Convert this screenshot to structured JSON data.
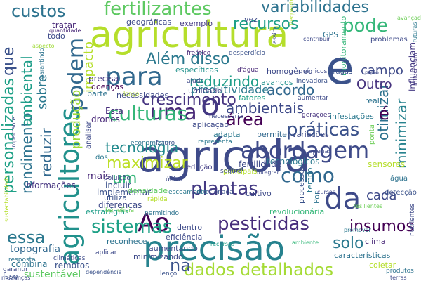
{
  "words": [
    {
      "text": "agricultura",
      "color": "#b5de2b"
    },
    {
      "text": "agrícola",
      "color": "#3e4a89"
    },
    {
      "text": "precisão",
      "color": "#26828e"
    },
    {
      "text": "e",
      "color": "#3b528b"
    },
    {
      "text": "agricultores",
      "color": "#21918c"
    },
    {
      "text": "abordagem",
      "color": "#3e4a89"
    },
    {
      "text": "para",
      "color": "#31688e"
    },
    {
      "text": "uma",
      "color": "#482878"
    },
    {
      "text": "o",
      "color": "#443983"
    },
    {
      "text": "da",
      "color": "#3e4a89"
    },
    {
      "text": "Ao",
      "color": "#440154"
    },
    {
      "text": "fertilizantes",
      "color": "#5ec962"
    },
    {
      "text": "variabilidades",
      "color": "#2c728e"
    },
    {
      "text": "dados detalhados",
      "color": "#a5db36"
    },
    {
      "text": "pesticidas",
      "color": "#472d7b"
    },
    {
      "text": "plantas",
      "color": "#443983"
    },
    {
      "text": "culturas",
      "color": "#35b779"
    },
    {
      "text": "como",
      "color": "#31688e"
    },
    {
      "text": "práticas",
      "color": "#3b528b"
    },
    {
      "text": "área",
      "color": "#440154"
    },
    {
      "text": "Além disso",
      "color": "#2a788e"
    },
    {
      "text": "podem",
      "color": "#31688e"
    },
    {
      "text": "recursos",
      "color": "#1f9e89"
    },
    {
      "text": "pode",
      "color": "#35b779"
    },
    {
      "text": "custos",
      "color": "#2c728e"
    },
    {
      "text": "ambientais",
      "color": "#3e4a89"
    },
    {
      "text": "personalizadas",
      "color": "#1fa187"
    },
    {
      "text": "sistemas",
      "color": "#1fa187"
    },
    {
      "text": "essa",
      "color": "#2a788e"
    },
    {
      "text": "na",
      "color": "#3b528b"
    },
    {
      "text": "insumos",
      "color": "#440154"
    },
    {
      "text": "solo",
      "color": "#2a788e"
    },
    {
      "text": "um",
      "color": "#35b779"
    },
    {
      "text": "crescimento",
      "color": "#463480"
    },
    {
      "text": "acordo",
      "color": "#31688e"
    },
    {
      "text": "reduzindo",
      "color": "#1f9e89"
    },
    {
      "text": "maximizar",
      "color": "#bddf26"
    },
    {
      "text": "tecnologia",
      "color": "#238a8d"
    },
    {
      "text": "otimizar",
      "color": "#2c728e"
    },
    {
      "text": "minimizar",
      "color": "#26828e"
    },
    {
      "text": "rendimento",
      "color": "#2c728e"
    },
    {
      "text": "ambiental",
      "color": "#1f9e89"
    },
    {
      "text": "sobre",
      "color": "#2a788e"
    },
    {
      "text": "produção",
      "color": "#a0da39"
    },
    {
      "text": "impacto",
      "color": "#b5de2b"
    },
    {
      "text": "que",
      "color": "#3b528b"
    },
    {
      "text": "reduzir",
      "color": "#31688e"
    },
    {
      "text": "cada",
      "color": "#3e4a89"
    },
    {
      "text": "campo",
      "color": "#3e4a89"
    },
    {
      "text": "Outro",
      "color": "#46327e"
    },
    {
      "text": "é",
      "color": "#440154"
    },
    {
      "text": "produtividade",
      "color": "#2a788e"
    },
    {
      "text": "topografia",
      "color": "#31688e"
    },
    {
      "text": "sustentável",
      "color": "#5ec962"
    },
    {
      "text": "combina",
      "color": "#2c728e"
    },
    {
      "text": "informações",
      "color": "#463480"
    },
    {
      "text": "remotos",
      "color": "#3b528b"
    },
    {
      "text": "mais",
      "color": "#482878"
    },
    {
      "text": "incluir",
      "color": "#3b528b"
    },
    {
      "text": "implementar",
      "color": "#3b528b"
    },
    {
      "text": "fertilidade",
      "color": "#3e4a89"
    },
    {
      "text": "tecnológicos",
      "color": "#2a788e"
    },
    {
      "text": "sensores",
      "color": "#b5de2b"
    },
    {
      "text": "influenciam",
      "color": "#443983"
    },
    {
      "text": "monitoramento",
      "color": "#35b779"
    },
    {
      "text": "exemplo",
      "color": "#443983"
    },
    {
      "text": "geográficas",
      "color": "#3e4a89"
    },
    {
      "text": "tratar",
      "color": "#482878"
    },
    {
      "text": "todo",
      "color": "#3e4a89"
    },
    {
      "text": "homogêneo",
      "color": "#3e4a89"
    },
    {
      "text": "precisa",
      "color": "#443983"
    },
    {
      "text": "doenças",
      "color": "#440154"
    },
    {
      "text": "avanços",
      "color": "#21918c"
    },
    {
      "text": "específicas",
      "color": "#21918c"
    },
    {
      "text": "necessidades",
      "color": "#3e4a89"
    },
    {
      "text": "parte",
      "color": "#2c728e"
    },
    {
      "text": "umidade",
      "color": "#433e85"
    },
    {
      "text": "fatores",
      "color": "#1fa187"
    },
    {
      "text": "drones",
      "color": "#482878"
    },
    {
      "text": "Esta",
      "color": "#472d7b"
    },
    {
      "text": "aplicação",
      "color": "#3e4a89"
    },
    {
      "text": "adapta",
      "color": "#2a788e"
    },
    {
      "text": "permite",
      "color": "#31688e"
    },
    {
      "text": "variações",
      "color": "#3e4a89"
    },
    {
      "text": "infestações",
      "color": "#2a788e"
    },
    {
      "text": "real",
      "color": "#2c728e"
    },
    {
      "text": "GPS",
      "color": "#2c728e"
    },
    {
      "text": "vez",
      "color": "#3e4a89"
    },
    {
      "text": "problemas",
      "color": "#3e4a89"
    },
    {
      "text": "pragas",
      "color": "#3b528b"
    },
    {
      "text": "diferenças",
      "color": "#3e4a89"
    },
    {
      "text": "estratégias",
      "color": "#1f9e89"
    },
    {
      "text": "eficiência",
      "color": "#3e4a89"
    },
    {
      "text": "revolucionária",
      "color": "#35b779"
    },
    {
      "text": "densidade",
      "color": "#5ec962"
    },
    {
      "text": "utiliza",
      "color": "#3b528b"
    },
    {
      "text": "cultivo",
      "color": "#3e4a89"
    },
    {
      "text": "dentro",
      "color": "#3e4a89"
    },
    {
      "text": "reconhece",
      "color": "#2c728e"
    },
    {
      "text": "aumentando",
      "color": "#3e4a89"
    },
    {
      "text": "minimizando",
      "color": "#3e4a89"
    },
    {
      "text": "características",
      "color": "#2c728e"
    },
    {
      "text": "coletar",
      "color": "#b5de2b"
    },
    {
      "text": "clima",
      "color": "#482878"
    },
    {
      "text": "processos",
      "color": "#3b528b"
    },
    {
      "text": "tempo",
      "color": "#2a788e"
    },
    {
      "text": "Por",
      "color": "#2c728e"
    },
    {
      "text": "redução",
      "color": "#433e85"
    },
    {
      "text": "principais",
      "color": "#b5de2b"
    },
    {
      "text": "ponta",
      "color": "#6ece58"
    },
    {
      "text": "água",
      "color": "#2c728e"
    },
    {
      "text": "detecção",
      "color": "#3b528b"
    },
    {
      "text": "analisar",
      "color": "#3e4a89"
    },
    {
      "text": "dos",
      "color": "#2a788e"
    },
    {
      "text": "Isso",
      "color": "#3b528b"
    },
    {
      "text": "frequentemente",
      "color": "#b5de2b"
    },
    {
      "text": "desperdício",
      "color": "#3b528b"
    },
    {
      "text": "freático",
      "color": "#482878"
    },
    {
      "text": "d'água",
      "color": "#482878"
    },
    {
      "text": "químicos",
      "color": "#3e4a89"
    },
    {
      "text": "lençol",
      "color": "#3b528b"
    },
    {
      "text": "ajuda",
      "color": "#3e4a89"
    },
    {
      "text": "inovadora",
      "color": "#3b528b"
    },
    {
      "text": "gerações",
      "color": "#46327e"
    },
    {
      "text": "aumentar",
      "color": "#3e4a89"
    },
    {
      "text": "necessária",
      "color": "#3e4a89"
    },
    {
      "text": "representa",
      "color": "#2a788e"
    },
    {
      "text": "economizar",
      "color": "#2c728e"
    },
    {
      "text": "futuro",
      "color": "#3b528b"
    },
    {
      "text": "seguro",
      "color": "#3e4a89"
    },
    {
      "text": "apenas",
      "color": "#3e4a89"
    },
    {
      "text": "única",
      "color": "#3e4a89"
    },
    {
      "text": "direcionada",
      "color": "#3b528b"
    },
    {
      "text": "escoamento",
      "color": "#2a788e"
    },
    {
      "text": "poluição",
      "color": "#3e4a89"
    },
    {
      "text": "rápida",
      "color": "#b5de2b"
    },
    {
      "text": "permitindo",
      "color": "#2c728e"
    },
    {
      "text": "beneficia",
      "color": "#6ece58"
    },
    {
      "text": "aplicar",
      "color": "#3e4a89"
    },
    {
      "text": "resposta",
      "color": "#2c728e"
    },
    {
      "text": "garantir",
      "color": "#3e4a89"
    },
    {
      "text": "climáticas",
      "color": "#3e4a89"
    },
    {
      "text": "produtos",
      "color": "#2c728e"
    },
    {
      "text": "terras",
      "color": "#3e4a89"
    },
    {
      "text": "ambiente",
      "color": "#35b779"
    },
    {
      "text": "resilientes",
      "color": "#6ece58"
    },
    {
      "text": "promover",
      "color": "#2a788e"
    },
    {
      "text": "nutrientes",
      "color": "#3e4a89"
    },
    {
      "text": "recursos",
      "color": "#1f9e89"
    },
    {
      "text": "cursos",
      "color": "#3e4a89"
    },
    {
      "text": "integrar",
      "color": "#3e4a89"
    },
    {
      "text": "longo",
      "color": "#b5de2b"
    },
    {
      "text": "quantidade",
      "color": "#482878"
    },
    {
      "text": "aspecto",
      "color": "#a0da39"
    },
    {
      "text": "garantindo",
      "color": "#2c728e"
    },
    {
      "text": "mudanças",
      "color": "#3e4a89"
    },
    {
      "text": "futuras",
      "color": "#2a788e"
    },
    {
      "text": "avançada",
      "color": "#6ece58"
    },
    {
      "text": "influenciam",
      "color": "#443983"
    },
    {
      "text": "contribuir",
      "color": "#3e4a89"
    },
    {
      "text": "meio",
      "color": "#3e4a89"
    },
    {
      "text": "assim",
      "color": "#3e4a89"
    },
    {
      "text": "impactante",
      "color": "#3e4a89"
    },
    {
      "text": "sustentabilidade",
      "color": "#b5de2b"
    },
    {
      "text": "dependência",
      "color": "#3b528b"
    }
  ]
}
